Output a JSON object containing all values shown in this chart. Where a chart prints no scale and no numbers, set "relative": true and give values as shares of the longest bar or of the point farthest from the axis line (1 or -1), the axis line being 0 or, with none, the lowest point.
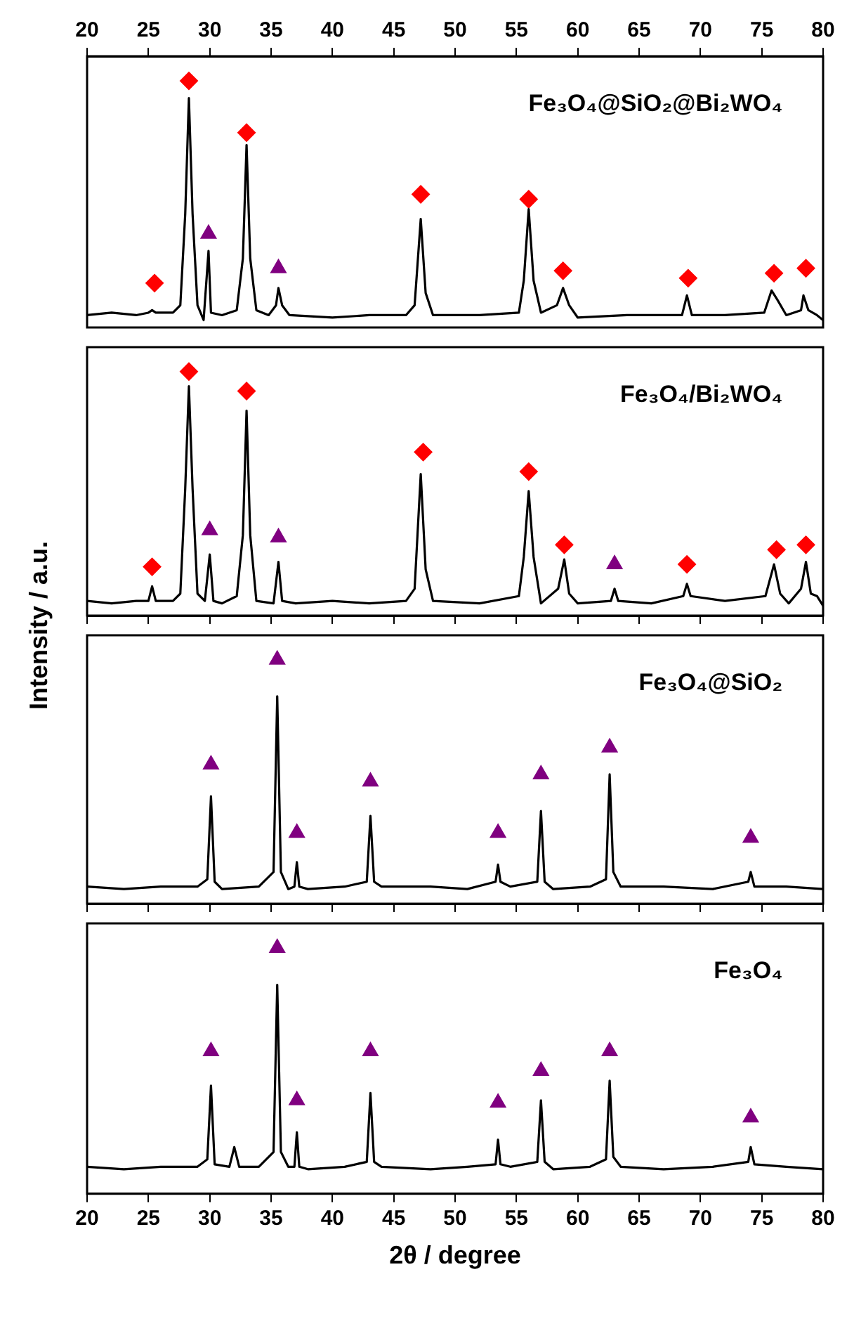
{
  "chart_data": [
    {
      "type": "line",
      "relative": true,
      "title": "Fe₃O₄@SiO₂@Bi₂WO₄",
      "xlim": [
        20,
        80
      ],
      "xticks": [
        20,
        25,
        30,
        35,
        40,
        45,
        50,
        55,
        60,
        65,
        70,
        75,
        80
      ],
      "series": [
        {
          "color": "#000000",
          "x": [
            20,
            22,
            24,
            25.0,
            25.3,
            25.6,
            27.0,
            27.6,
            28.0,
            28.3,
            28.6,
            29.0,
            29.5,
            29.9,
            30.1,
            31,
            32.2,
            32.7,
            33.0,
            33.3,
            33.8,
            34.8,
            35.4,
            35.6,
            35.9,
            36.5,
            40,
            43,
            46,
            46.7,
            47.2,
            47.6,
            48.2,
            52,
            55.2,
            55.6,
            56.0,
            56.4,
            57.0,
            58.3,
            58.8,
            59.3,
            60,
            64,
            68.5,
            68.9,
            69.3,
            72,
            75.2,
            75.8,
            76.3,
            77,
            78.2,
            78.4,
            78.8,
            79.5,
            80
          ],
          "values": [
            0.05,
            0.06,
            0.05,
            0.06,
            0.07,
            0.06,
            0.06,
            0.09,
            0.46,
            0.93,
            0.46,
            0.09,
            0.03,
            0.31,
            0.06,
            0.05,
            0.07,
            0.28,
            0.74,
            0.28,
            0.07,
            0.05,
            0.09,
            0.16,
            0.09,
            0.05,
            0.04,
            0.05,
            0.05,
            0.09,
            0.44,
            0.14,
            0.05,
            0.05,
            0.06,
            0.19,
            0.48,
            0.19,
            0.06,
            0.09,
            0.16,
            0.09,
            0.04,
            0.05,
            0.05,
            0.13,
            0.05,
            0.05,
            0.06,
            0.15,
            0.11,
            0.05,
            0.07,
            0.13,
            0.07,
            0.05,
            0.03
          ]
        },
        {
          "type": "scatter",
          "marker": "diamond",
          "color": "#ff0000",
          "x": [
            25.5,
            28.3,
            33.0,
            47.2,
            56.0,
            58.8,
            69.0,
            76.0,
            78.6
          ],
          "values": [
            0.18,
            1,
            0.79,
            0.54,
            0.52,
            0.23,
            0.2,
            0.22,
            0.24
          ]
        },
        {
          "type": "scatter",
          "marker": "triangle",
          "color": "#800080",
          "x": [
            29.9,
            35.6
          ],
          "values": [
            0.38,
            0.24
          ]
        }
      ]
    },
    {
      "type": "line",
      "relative": true,
      "title": "Fe₃O₄/Bi₂WO₄",
      "ylabel": "Intensity / a.u.",
      "xlim": [
        20,
        80
      ],
      "xticks": [
        20,
        25,
        30,
        35,
        40,
        45,
        50,
        55,
        60,
        65,
        70,
        75,
        80
      ],
      "tick_labels": false,
      "series": [
        {
          "color": "#000000",
          "x": [
            20,
            22,
            24,
            25.0,
            25.3,
            25.6,
            27.0,
            27.6,
            28.0,
            28.3,
            28.6,
            29.0,
            29.6,
            30.0,
            30.3,
            31,
            32.2,
            32.7,
            33.0,
            33.3,
            33.8,
            35.2,
            35.6,
            35.9,
            37,
            40,
            43,
            46,
            46.7,
            47.2,
            47.6,
            48.2,
            52,
            55.2,
            55.6,
            56.0,
            56.4,
            57.0,
            58.4,
            58.9,
            59.3,
            60,
            62.7,
            63.0,
            63.3,
            66,
            68.6,
            68.9,
            69.2,
            72,
            75.3,
            76.0,
            76.5,
            77.2,
            78.2,
            78.6,
            79.0,
            79.5,
            80
          ],
          "values": [
            0.06,
            0.05,
            0.06,
            0.06,
            0.12,
            0.06,
            0.06,
            0.09,
            0.52,
            0.94,
            0.52,
            0.09,
            0.06,
            0.25,
            0.06,
            0.05,
            0.08,
            0.33,
            0.84,
            0.33,
            0.06,
            0.05,
            0.22,
            0.06,
            0.05,
            0.06,
            0.05,
            0.06,
            0.11,
            0.58,
            0.19,
            0.06,
            0.05,
            0.08,
            0.24,
            0.51,
            0.24,
            0.05,
            0.11,
            0.23,
            0.09,
            0.05,
            0.06,
            0.11,
            0.06,
            0.05,
            0.08,
            0.13,
            0.08,
            0.06,
            0.08,
            0.21,
            0.09,
            0.05,
            0.11,
            0.22,
            0.09,
            0.08,
            0.04
          ]
        },
        {
          "type": "scatter",
          "marker": "diamond",
          "color": "#ff0000",
          "x": [
            25.3,
            28.3,
            33.0,
            47.4,
            56.0,
            58.9,
            68.9,
            76.2,
            78.6
          ],
          "values": [
            0.2,
            1,
            0.92,
            0.67,
            0.59,
            0.29,
            0.21,
            0.27,
            0.29
          ]
        },
        {
          "type": "scatter",
          "marker": "triangle",
          "color": "#800080",
          "x": [
            30.0,
            35.6,
            63.0
          ],
          "values": [
            0.35,
            0.32,
            0.21
          ]
        }
      ]
    },
    {
      "type": "line",
      "relative": true,
      "title": "Fe₃O₄@SiO₂",
      "xlim": [
        20,
        80
      ],
      "xticks": [
        20,
        25,
        30,
        35,
        40,
        45,
        50,
        55,
        60,
        65,
        70,
        75,
        80
      ],
      "tick_labels": false,
      "series": [
        {
          "color": "#000000",
          "x": [
            20,
            23,
            26,
            29,
            29.8,
            30.1,
            30.4,
            31,
            34,
            35.2,
            35.5,
            35.8,
            36.4,
            36.9,
            37.1,
            37.3,
            38,
            41,
            42.8,
            43.1,
            43.4,
            44,
            48,
            51,
            53.3,
            53.5,
            53.7,
            54.5,
            56.7,
            57.0,
            57.3,
            58,
            61,
            62.3,
            62.6,
            62.9,
            63.5,
            67,
            71,
            73.9,
            74.1,
            74.4,
            77,
            80
          ],
          "values": [
            0.07,
            0.06,
            0.07,
            0.07,
            0.1,
            0.44,
            0.09,
            0.06,
            0.07,
            0.13,
            0.85,
            0.13,
            0.06,
            0.07,
            0.17,
            0.07,
            0.06,
            0.07,
            0.09,
            0.36,
            0.09,
            0.07,
            0.07,
            0.06,
            0.09,
            0.16,
            0.09,
            0.07,
            0.09,
            0.38,
            0.09,
            0.06,
            0.07,
            0.1,
            0.53,
            0.13,
            0.07,
            0.07,
            0.06,
            0.09,
            0.13,
            0.07,
            0.07,
            0.06
          ]
        },
        {
          "type": "scatter",
          "marker": "triangle",
          "color": "#800080",
          "x": [
            30.1,
            35.5,
            37.1,
            43.1,
            53.5,
            57.0,
            62.6,
            74.1
          ],
          "values": [
            0.57,
            1,
            0.29,
            0.5,
            0.29,
            0.53,
            0.64,
            0.27
          ]
        }
      ]
    },
    {
      "type": "line",
      "relative": true,
      "title": "Fe₃O₄",
      "xlabel": "2θ / degree",
      "xlim": [
        20,
        80
      ],
      "xticks": [
        20,
        25,
        30,
        35,
        40,
        45,
        50,
        55,
        60,
        65,
        70,
        75,
        80
      ],
      "tick_labels": "x",
      "series": [
        {
          "color": "#000000",
          "x": [
            20,
            23,
            26,
            29,
            29.8,
            30.1,
            30.4,
            31.6,
            32.0,
            32.4,
            34,
            35.2,
            35.5,
            35.8,
            36.4,
            36.9,
            37.1,
            37.3,
            38,
            41,
            42.8,
            43.1,
            43.4,
            44,
            48,
            51,
            53.3,
            53.5,
            53.7,
            54.5,
            56.7,
            57.0,
            57.3,
            58,
            61,
            62.3,
            62.6,
            62.9,
            63.5,
            67,
            71,
            73.9,
            74.1,
            74.4,
            77,
            80
          ],
          "values": [
            0.11,
            0.1,
            0.11,
            0.11,
            0.14,
            0.44,
            0.12,
            0.11,
            0.19,
            0.11,
            0.11,
            0.17,
            0.85,
            0.17,
            0.11,
            0.11,
            0.25,
            0.11,
            0.1,
            0.11,
            0.13,
            0.41,
            0.13,
            0.11,
            0.1,
            0.11,
            0.12,
            0.22,
            0.12,
            0.11,
            0.13,
            0.38,
            0.13,
            0.1,
            0.11,
            0.14,
            0.46,
            0.15,
            0.11,
            0.1,
            0.11,
            0.13,
            0.19,
            0.12,
            0.11,
            0.1
          ]
        },
        {
          "type": "scatter",
          "marker": "triangle",
          "color": "#800080",
          "x": [
            30.1,
            35.5,
            37.1,
            43.1,
            53.5,
            57.0,
            62.6,
            74.1
          ],
          "values": [
            0.58,
            1,
            0.38,
            0.58,
            0.37,
            0.5,
            0.58,
            0.31
          ]
        }
      ]
    }
  ]
}
